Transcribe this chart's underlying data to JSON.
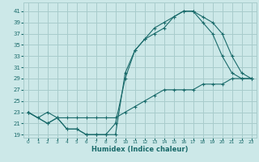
{
  "bg_color": "#cce8e8",
  "grid_color": "#a8cccc",
  "line_color": "#1a6b6b",
  "xlabel": "Humidex (Indice chaleur)",
  "ylim": [
    18.5,
    42.5
  ],
  "xlim": [
    -0.5,
    23.5
  ],
  "yticks": [
    19,
    21,
    23,
    25,
    27,
    29,
    31,
    33,
    35,
    37,
    39,
    41
  ],
  "xticks": [
    0,
    1,
    2,
    3,
    4,
    5,
    6,
    7,
    8,
    9,
    10,
    11,
    12,
    13,
    14,
    15,
    16,
    17,
    18,
    19,
    20,
    21,
    22,
    23
  ],
  "line1_x": [
    0,
    1,
    2,
    3,
    4,
    5,
    6,
    7,
    8,
    9,
    10,
    11,
    12,
    13,
    14,
    15,
    16,
    17,
    18,
    19,
    20,
    21,
    22,
    23
  ],
  "line1_y": [
    23,
    22,
    23,
    22,
    22,
    22,
    22,
    22,
    22,
    22,
    23,
    24,
    25,
    26,
    27,
    27,
    27,
    27,
    28,
    28,
    28,
    29,
    29,
    29
  ],
  "line2_x": [
    0,
    2,
    3,
    4,
    5,
    6,
    7,
    8,
    9,
    10,
    11,
    12,
    13,
    14,
    15,
    16,
    17,
    18,
    19,
    20,
    21,
    22,
    23
  ],
  "line2_y": [
    23,
    21,
    22,
    20,
    20,
    19,
    19,
    19,
    19,
    30,
    34,
    36,
    38,
    39,
    40,
    41,
    41,
    39,
    37,
    33,
    30,
    29,
    29
  ],
  "line3_x": [
    0,
    2,
    3,
    4,
    5,
    6,
    7,
    8,
    9,
    10,
    11,
    12,
    13,
    14,
    15,
    16,
    17,
    18,
    19,
    20,
    21,
    22,
    23
  ],
  "line3_y": [
    23,
    21,
    22,
    20,
    20,
    19,
    19,
    19,
    21,
    29,
    34,
    36,
    37,
    38,
    40,
    41,
    41,
    40,
    39,
    37,
    33,
    30,
    29
  ]
}
